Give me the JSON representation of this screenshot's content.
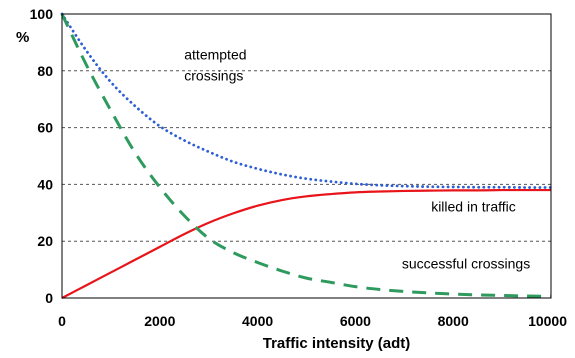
{
  "chart_data": {
    "type": "line",
    "title": "",
    "xlabel": "Traffic intensity (adt)",
    "ylabel": "%",
    "xlim": [
      0,
      10000
    ],
    "ylim": [
      0,
      100
    ],
    "x_ticks": [
      0,
      2000,
      4000,
      6000,
      8000,
      10000
    ],
    "y_ticks": [
      0,
      20,
      40,
      60,
      80,
      100
    ],
    "x_tick_labels": [
      "0",
      "2000",
      "4000",
      "6000",
      "8000",
      "10000"
    ],
    "y_tick_labels": [
      "0",
      "20",
      "40",
      "60",
      "80",
      "100"
    ],
    "grid": "horizontal dashed",
    "legend": "none (curves labelled directly)",
    "x": [
      0,
      500,
      1000,
      1500,
      2000,
      2500,
      3000,
      3500,
      4000,
      4500,
      5000,
      5500,
      6000,
      6500,
      7000,
      7500,
      8000,
      8500,
      9000,
      9500,
      10000
    ],
    "series": [
      {
        "name": "attempted crossings",
        "color": "#2f5fd6",
        "style": "dotted",
        "values": [
          100,
          87,
          76,
          67.5,
          60.5,
          55.5,
          51.5,
          48,
          45.5,
          43.5,
          42,
          41,
          40.2,
          39.7,
          39.4,
          39.2,
          39.1,
          39,
          39,
          38.9,
          38.9
        ]
      },
      {
        "name": "killed in traffic",
        "color": "#e8141a",
        "style": "solid",
        "values": [
          0,
          4.5,
          9,
          13.5,
          18,
          22.5,
          26.5,
          29.8,
          32.5,
          34.5,
          35.8,
          36.6,
          37.2,
          37.5,
          37.7,
          37.8,
          37.9,
          37.9,
          38,
          38,
          38
        ]
      },
      {
        "name": "successful crossings",
        "color": "#2e9a5e",
        "style": "dashed",
        "values": [
          100,
          82,
          66,
          51,
          39,
          29,
          21,
          16,
          12.5,
          9.5,
          7,
          5.5,
          4,
          3,
          2.3,
          1.8,
          1.4,
          1.1,
          0.9,
          0.7,
          0.6
        ]
      }
    ],
    "annotations": [
      {
        "text": "attempted",
        "x": 2500,
        "y": 84
      },
      {
        "text": "crossings",
        "x": 2500,
        "y": 76.5
      },
      {
        "text": "killed in traffic",
        "x": 7550,
        "y": 30.5
      },
      {
        "text": "successful crossings",
        "x": 6950,
        "y": 10.3
      }
    ]
  }
}
